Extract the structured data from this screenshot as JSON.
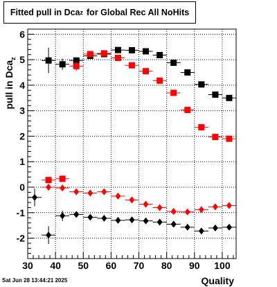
{
  "title": {
    "text": "Fitted pull in Dca",
    "subscript": "z",
    "suffix": "for Global Rec All NoHits"
  },
  "timestamp": "Sat Jun 28 13:44:21 2025",
  "colors": {
    "series_black": "#000000",
    "series_red": "#ff0000",
    "grid": "#000000"
  },
  "chart_data": {
    "type": "scatter",
    "title": "Fitted pull in Dca_z for Global Rec All NoHits",
    "xlabel": "Quality",
    "ylabel": "pull in Dca_z",
    "xlim": [
      30,
      105
    ],
    "ylim": [
      -2.8,
      6.2
    ],
    "xticks": [
      30,
      40,
      50,
      60,
      70,
      80,
      90,
      100
    ],
    "yticks": [
      -2,
      -1,
      0,
      1,
      2,
      3,
      4,
      5,
      6
    ],
    "grid": true,
    "x_bin_halfwidth": 2.5,
    "series": [
      {
        "marker": "square",
        "color": "#000000",
        "x": [
          37.5,
          42.5,
          47.5,
          52.5,
          57.5,
          62.5,
          67.5,
          72.5,
          77.5,
          82.5,
          87.5,
          92.5,
          97.5,
          102.5
        ],
        "y": [
          4.97,
          4.82,
          4.97,
          5.15,
          5.22,
          5.38,
          5.37,
          5.33,
          5.18,
          4.88,
          4.5,
          4.03,
          3.63,
          3.5
        ],
        "yerr": [
          0.5,
          0.22,
          0.12,
          0.08,
          0.06,
          0.05,
          0.05,
          0.05,
          0.05,
          0.05,
          0.05,
          0.05,
          0.05,
          0.05
        ]
      },
      {
        "marker": "square",
        "color": "#ff0000",
        "x": [
          37.5,
          42.5,
          47.5,
          52.5,
          57.5,
          62.5,
          67.5,
          72.5,
          77.5,
          82.5,
          87.5,
          92.5,
          97.5,
          102.5
        ],
        "y": [
          0.28,
          0.33,
          4.75,
          5.22,
          5.25,
          5.07,
          4.78,
          4.55,
          4.18,
          3.7,
          3.03,
          2.35,
          1.97,
          1.9
        ],
        "yerr": [
          0.05,
          0.05,
          0.18,
          0.08,
          0.05,
          0.04,
          0.04,
          0.04,
          0.04,
          0.04,
          0.04,
          0.04,
          0.04,
          0.04
        ]
      },
      {
        "marker": "diamond",
        "color": "#ff0000",
        "x": [
          37.5,
          42.5,
          47.5,
          52.5,
          57.5,
          62.5,
          67.5,
          72.5,
          77.5,
          82.5,
          87.5,
          92.5,
          97.5,
          102.5
        ],
        "y": [
          0.0,
          -0.03,
          -0.18,
          -0.23,
          -0.18,
          -0.35,
          -0.5,
          -0.67,
          -0.8,
          -0.95,
          -0.97,
          -0.88,
          -0.77,
          -0.72
        ],
        "yerr": [
          0.04,
          0.04,
          0.04,
          0.04,
          0.04,
          0.04,
          0.04,
          0.04,
          0.04,
          0.04,
          0.04,
          0.04,
          0.04,
          0.04
        ]
      },
      {
        "marker": "diamond",
        "color": "#000000",
        "x": [
          32.5,
          37.5,
          42.5,
          47.5,
          52.5,
          57.5,
          62.5,
          67.5,
          72.5,
          77.5,
          82.5,
          87.5,
          92.5,
          97.5,
          102.5
        ],
        "y": [
          -0.4,
          -1.88,
          -1.12,
          -1.07,
          -1.18,
          -1.22,
          -1.3,
          -1.28,
          -1.32,
          -1.37,
          -1.45,
          -1.57,
          -1.72,
          -1.6,
          -1.57
        ],
        "yerr": [
          0.35,
          0.35,
          0.2,
          0.1,
          0.07,
          0.06,
          0.05,
          0.05,
          0.05,
          0.05,
          0.05,
          0.05,
          0.05,
          0.05,
          0.05
        ]
      }
    ]
  }
}
